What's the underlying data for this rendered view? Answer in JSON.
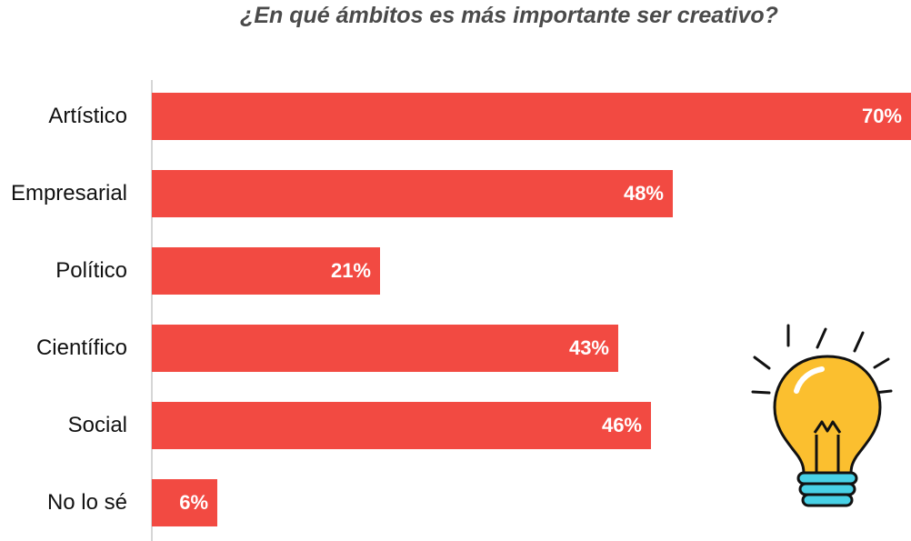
{
  "title": "¿En qué ámbitos es más importante ser creativo?",
  "colors": {
    "bar": "#f24a42",
    "bulb_glass": "#fbbf2f",
    "bulb_base": "#48d1e6",
    "outline": "#111111"
  },
  "icons": {
    "decoration": "lightbulb-icon"
  },
  "chart_data": {
    "type": "bar",
    "orientation": "horizontal",
    "title": "¿En qué ámbitos es más importante ser creativo?",
    "categories": [
      "Artístico",
      "Empresarial",
      "Político",
      "Científico",
      "Social",
      "No lo sé"
    ],
    "values": [
      70,
      48,
      21,
      43,
      46,
      6
    ],
    "value_labels": [
      "70%",
      "48%",
      "21%",
      "43%",
      "46%",
      "6%"
    ],
    "unit": "%",
    "xlim": [
      0,
      70
    ],
    "grid": false,
    "legend": "none"
  }
}
